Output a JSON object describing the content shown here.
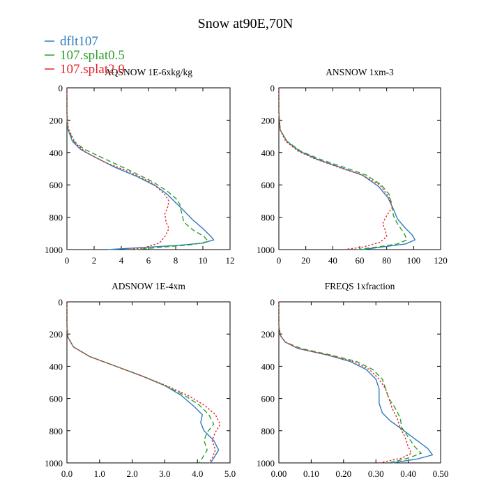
{
  "figure_title": "Snow at90E,70N",
  "legend": [
    {
      "label": "dflt107",
      "color": "#2f7bbf",
      "dash": "solid"
    },
    {
      "label": "107.splat0.5",
      "color": "#2ca02c",
      "dash": "dashed"
    },
    {
      "label": "107.splat2.0",
      "color": "#e3262b",
      "dash": "dotted"
    }
  ],
  "chart_data": [
    {
      "type": "line",
      "title": "AQSNOW  1E-6xkg/kg",
      "xlim": [
        0,
        12
      ],
      "xticks": [
        "0",
        "2",
        "4",
        "6",
        "8",
        "10",
        "12"
      ],
      "ylim": [
        1000,
        0
      ],
      "yticks": [
        "0",
        "200",
        "400",
        "600",
        "800",
        "1000"
      ],
      "series": [
        {
          "name": "dflt107",
          "points": [
            [
              0,
              0
            ],
            [
              0,
              150
            ],
            [
              0.05,
              250
            ],
            [
              0.4,
              330
            ],
            [
              1,
              380
            ],
            [
              2.1,
              430
            ],
            [
              3.5,
              490
            ],
            [
              5.2,
              550
            ],
            [
              6.6,
              610
            ],
            [
              7.4,
              660
            ],
            [
              8,
              710
            ],
            [
              8.6,
              760
            ],
            [
              9.3,
              820
            ],
            [
              10,
              870
            ],
            [
              10.6,
              920
            ],
            [
              10.8,
              940
            ],
            [
              10,
              960
            ],
            [
              8,
              975
            ],
            [
              5,
              990
            ],
            [
              3,
              1000
            ]
          ]
        },
        {
          "name": "107.splat0.5",
          "points": [
            [
              0,
              0
            ],
            [
              0,
              150
            ],
            [
              0.05,
              250
            ],
            [
              0.5,
              330
            ],
            [
              1.3,
              380
            ],
            [
              2.8,
              440
            ],
            [
              4.6,
              510
            ],
            [
              6.3,
              580
            ],
            [
              7.4,
              640
            ],
            [
              8.1,
              690
            ],
            [
              8.3,
              720
            ],
            [
              8.4,
              760
            ],
            [
              8.6,
              830
            ],
            [
              9.3,
              880
            ],
            [
              10.1,
              920
            ],
            [
              10.4,
              950
            ],
            [
              9.2,
              970
            ],
            [
              7,
              985
            ],
            [
              5,
              1000
            ]
          ]
        },
        {
          "name": "107.splat2.0",
          "points": [
            [
              0,
              0
            ],
            [
              0,
              150
            ],
            [
              0.1,
              250
            ],
            [
              0.6,
              340
            ],
            [
              1.4,
              400
            ],
            [
              2.8,
              460
            ],
            [
              4.6,
              520
            ],
            [
              6.3,
              590
            ],
            [
              7.2,
              660
            ],
            [
              7.5,
              700
            ],
            [
              7.4,
              740
            ],
            [
              7.2,
              780
            ],
            [
              7.3,
              830
            ],
            [
              7.5,
              870
            ],
            [
              7.2,
              920
            ],
            [
              6.8,
              960
            ],
            [
              5.6,
              990
            ],
            [
              4.5,
              1000
            ]
          ]
        }
      ]
    },
    {
      "type": "line",
      "title": "ANSNOW  1xm-3",
      "xlim": [
        0,
        120
      ],
      "xticks": [
        "0",
        "20",
        "40",
        "60",
        "80",
        "100",
        "120"
      ],
      "ylim": [
        1000,
        0
      ],
      "yticks": [
        "0",
        "200",
        "400",
        "600",
        "800",
        "1000"
      ],
      "series": [
        {
          "name": "dflt107",
          "points": [
            [
              0,
              0
            ],
            [
              0,
              150
            ],
            [
              1,
              260
            ],
            [
              6,
              330
            ],
            [
              15,
              390
            ],
            [
              28,
              440
            ],
            [
              45,
              490
            ],
            [
              62,
              540
            ],
            [
              74,
              610
            ],
            [
              81,
              680
            ],
            [
              85,
              750
            ],
            [
              88,
              810
            ],
            [
              93,
              860
            ],
            [
              99,
              910
            ],
            [
              101,
              940
            ],
            [
              94,
              965
            ],
            [
              80,
              980
            ],
            [
              62,
              1000
            ]
          ]
        },
        {
          "name": "107.splat0.5",
          "points": [
            [
              0,
              0
            ],
            [
              0,
              150
            ],
            [
              1,
              260
            ],
            [
              6,
              330
            ],
            [
              16,
              390
            ],
            [
              30,
              440
            ],
            [
              48,
              490
            ],
            [
              65,
              540
            ],
            [
              76,
              600
            ],
            [
              82,
              660
            ],
            [
              84,
              730
            ],
            [
              85,
              790
            ],
            [
              88,
              840
            ],
            [
              93,
              900
            ],
            [
              95,
              940
            ],
            [
              88,
              965
            ],
            [
              72,
              985
            ],
            [
              58,
              1000
            ]
          ]
        },
        {
          "name": "107.splat2.0",
          "points": [
            [
              0,
              0
            ],
            [
              0,
              150
            ],
            [
              1,
              260
            ],
            [
              5,
              330
            ],
            [
              14,
              390
            ],
            [
              27,
              440
            ],
            [
              44,
              490
            ],
            [
              62,
              540
            ],
            [
              75,
              600
            ],
            [
              82,
              680
            ],
            [
              84,
              740
            ],
            [
              80,
              790
            ],
            [
              77,
              840
            ],
            [
              79,
              880
            ],
            [
              80,
              920
            ],
            [
              75,
              955
            ],
            [
              62,
              985
            ],
            [
              48,
              1000
            ]
          ]
        }
      ]
    },
    {
      "type": "line",
      "title": "ADSNOW  1E-4xm",
      "xlim": [
        0,
        5
      ],
      "xticks": [
        "0.0",
        "1.0",
        "2.0",
        "3.0",
        "4.0",
        "5.0"
      ],
      "ylim": [
        1000,
        0
      ],
      "yticks": [
        "0",
        "200",
        "400",
        "600",
        "800",
        "1000"
      ],
      "series": [
        {
          "name": "dflt107",
          "points": [
            [
              0,
              0
            ],
            [
              0,
              150
            ],
            [
              0.03,
              220
            ],
            [
              0.2,
              280
            ],
            [
              0.7,
              340
            ],
            [
              1.5,
              400
            ],
            [
              2.3,
              460
            ],
            [
              3,
              520
            ],
            [
              3.5,
              580
            ],
            [
              3.9,
              650
            ],
            [
              4.15,
              700
            ],
            [
              4.1,
              750
            ],
            [
              4.2,
              800
            ],
            [
              4.5,
              860
            ],
            [
              4.65,
              920
            ],
            [
              4.5,
              970
            ],
            [
              4.4,
              1000
            ]
          ]
        },
        {
          "name": "107.splat0.5",
          "points": [
            [
              0,
              0
            ],
            [
              0,
              150
            ],
            [
              0.03,
              220
            ],
            [
              0.2,
              280
            ],
            [
              0.7,
              340
            ],
            [
              1.5,
              400
            ],
            [
              2.3,
              460
            ],
            [
              3,
              520
            ],
            [
              3.6,
              580
            ],
            [
              4.05,
              640
            ],
            [
              4.35,
              700
            ],
            [
              4.5,
              760
            ],
            [
              4.3,
              810
            ],
            [
              4.2,
              860
            ],
            [
              4.3,
              920
            ],
            [
              4.15,
              970
            ],
            [
              4.05,
              1000
            ]
          ]
        },
        {
          "name": "107.splat2.0",
          "points": [
            [
              0,
              0
            ],
            [
              0,
              150
            ],
            [
              0.03,
              220
            ],
            [
              0.2,
              280
            ],
            [
              0.7,
              340
            ],
            [
              1.5,
              400
            ],
            [
              2.3,
              460
            ],
            [
              3.05,
              520
            ],
            [
              3.7,
              580
            ],
            [
              4.2,
              640
            ],
            [
              4.55,
              700
            ],
            [
              4.7,
              760
            ],
            [
              4.55,
              810
            ],
            [
              4.45,
              860
            ],
            [
              4.55,
              920
            ],
            [
              4.45,
              970
            ],
            [
              4.35,
              1000
            ]
          ]
        }
      ]
    },
    {
      "type": "line",
      "title": "FREQS  1xfraction",
      "xlim": [
        0,
        0.5
      ],
      "xticks": [
        "0.00",
        "0.10",
        "0.20",
        "0.30",
        "0.40",
        "0.50"
      ],
      "ylim": [
        1000,
        0
      ],
      "yticks": [
        "0",
        "200",
        "400",
        "600",
        "800",
        "1000"
      ],
      "series": [
        {
          "name": "dflt107",
          "points": [
            [
              0,
              0
            ],
            [
              0,
              150
            ],
            [
              0.005,
              210
            ],
            [
              0.02,
              250
            ],
            [
              0.06,
              290
            ],
            [
              0.15,
              330
            ],
            [
              0.22,
              370
            ],
            [
              0.27,
              420
            ],
            [
              0.3,
              480
            ],
            [
              0.31,
              540
            ],
            [
              0.31,
              580
            ],
            [
              0.31,
              630
            ],
            [
              0.32,
              690
            ],
            [
              0.345,
              740
            ],
            [
              0.38,
              790
            ],
            [
              0.42,
              850
            ],
            [
              0.46,
              910
            ],
            [
              0.475,
              950
            ],
            [
              0.43,
              975
            ],
            [
              0.35,
              1000
            ]
          ]
        },
        {
          "name": "107.splat0.5",
          "points": [
            [
              0,
              0
            ],
            [
              0,
              150
            ],
            [
              0.005,
              210
            ],
            [
              0.02,
              250
            ],
            [
              0.07,
              290
            ],
            [
              0.16,
              330
            ],
            [
              0.24,
              370
            ],
            [
              0.29,
              420
            ],
            [
              0.32,
              480
            ],
            [
              0.33,
              540
            ],
            [
              0.34,
              600
            ],
            [
              0.36,
              660
            ],
            [
              0.375,
              720
            ],
            [
              0.38,
              780
            ],
            [
              0.4,
              840
            ],
            [
              0.42,
              900
            ],
            [
              0.44,
              940
            ],
            [
              0.4,
              970
            ],
            [
              0.34,
              1000
            ]
          ]
        },
        {
          "name": "107.splat2.0",
          "points": [
            [
              0,
              0
            ],
            [
              0,
              150
            ],
            [
              0.005,
              210
            ],
            [
              0.02,
              250
            ],
            [
              0.06,
              290
            ],
            [
              0.15,
              330
            ],
            [
              0.23,
              370
            ],
            [
              0.28,
              420
            ],
            [
              0.31,
              480
            ],
            [
              0.33,
              540
            ],
            [
              0.34,
              600
            ],
            [
              0.35,
              660
            ],
            [
              0.365,
              720
            ],
            [
              0.375,
              780
            ],
            [
              0.39,
              840
            ],
            [
              0.4,
              900
            ],
            [
              0.41,
              940
            ],
            [
              0.38,
              970
            ],
            [
              0.31,
              1000
            ]
          ]
        }
      ]
    }
  ]
}
